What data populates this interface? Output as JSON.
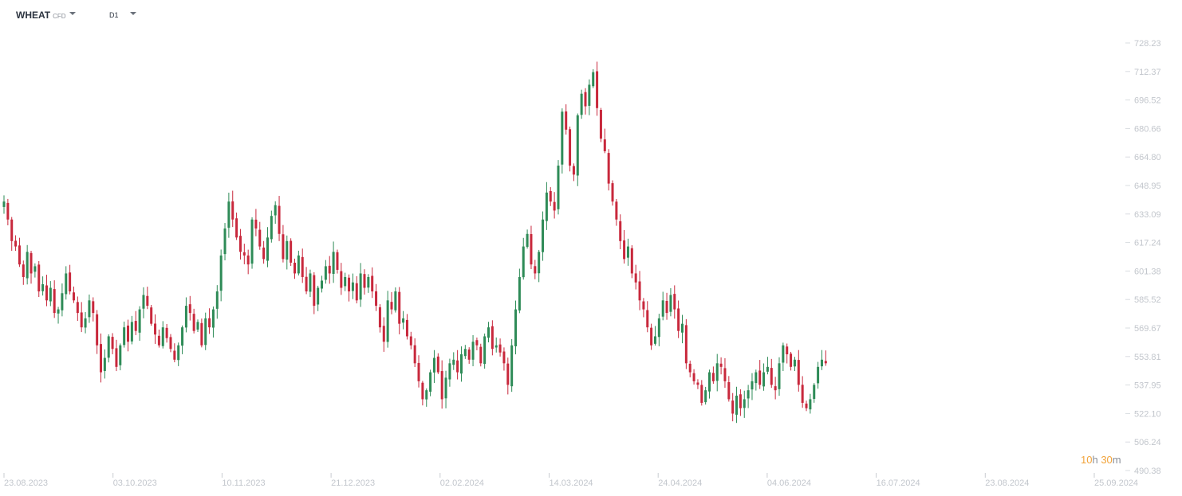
{
  "toolbar": {
    "symbol": "WHEAT",
    "symbol_type": "CFD",
    "timeframe": "D1"
  },
  "countdown": {
    "hours": "10",
    "h_unit": "h",
    "minutes": "30",
    "m_unit": "m"
  },
  "colors": {
    "up": "#2e8b57",
    "down": "#c8283c",
    "axis_text": "#c2c6cc",
    "countdown": "#f2a33a"
  },
  "chart_data": {
    "type": "candlestick",
    "title": "",
    "ylim": [
      490.38,
      735
    ],
    "y_ticks": [
      "728.23",
      "712.37",
      "696.52",
      "680.66",
      "664.80",
      "648.95",
      "633.09",
      "617.24",
      "601.38",
      "585.52",
      "569.67",
      "553.81",
      "537.95",
      "522.10",
      "506.24",
      "490.38"
    ],
    "x_ticks": [
      "23.08.2023",
      "03.10.2023",
      "10.11.2023",
      "21.12.2023",
      "02.02.2024",
      "14.03.2024",
      "24.04.2024",
      "04.06.2024",
      "16.07.2024",
      "23.08.2024",
      "25.09.2024"
    ],
    "timeframe": "D1",
    "closes": [
      640,
      630,
      618,
      615,
      605,
      598,
      612,
      600,
      604,
      590,
      594,
      585,
      592,
      578,
      580,
      589,
      600,
      590,
      585,
      578,
      570,
      575,
      585,
      578,
      560,
      545,
      553,
      565,
      558,
      548,
      560,
      570,
      562,
      573,
      568,
      580,
      588,
      582,
      572,
      566,
      560,
      570,
      564,
      558,
      552,
      560,
      570,
      582,
      578,
      568,
      573,
      560,
      575,
      570,
      580,
      590,
      610,
      625,
      640,
      630,
      620,
      612,
      610,
      605,
      630,
      625,
      615,
      608,
      620,
      632,
      638,
      622,
      608,
      618,
      606,
      600,
      610,
      598,
      590,
      600,
      582,
      592,
      596,
      604,
      600,
      612,
      602,
      592,
      598,
      590,
      595,
      585,
      600,
      592,
      598,
      590,
      582,
      570,
      562,
      585,
      580,
      590,
      572,
      575,
      565,
      560,
      550,
      540,
      530,
      535,
      545,
      553,
      545,
      530,
      542,
      550,
      552,
      545,
      555,
      558,
      552,
      562,
      560,
      550,
      565,
      570,
      558,
      560,
      556,
      550,
      538,
      560,
      580,
      598,
      615,
      622,
      605,
      600,
      612,
      630,
      645,
      640,
      635,
      660,
      690,
      680,
      660,
      655,
      688,
      700,
      693,
      705,
      712,
      692,
      675,
      668,
      650,
      640,
      630,
      618,
      608,
      615,
      600,
      595,
      585,
      580,
      570,
      560,
      565,
      575,
      585,
      578,
      588,
      580,
      568,
      572,
      550,
      545,
      540,
      538,
      528,
      535,
      545,
      540,
      550,
      548,
      540,
      530,
      522,
      532,
      525,
      530,
      535,
      540,
      545,
      538,
      545,
      548,
      538,
      535,
      550,
      560,
      555,
      548,
      552,
      538,
      528,
      525,
      530,
      538,
      548,
      552,
      550
    ]
  }
}
